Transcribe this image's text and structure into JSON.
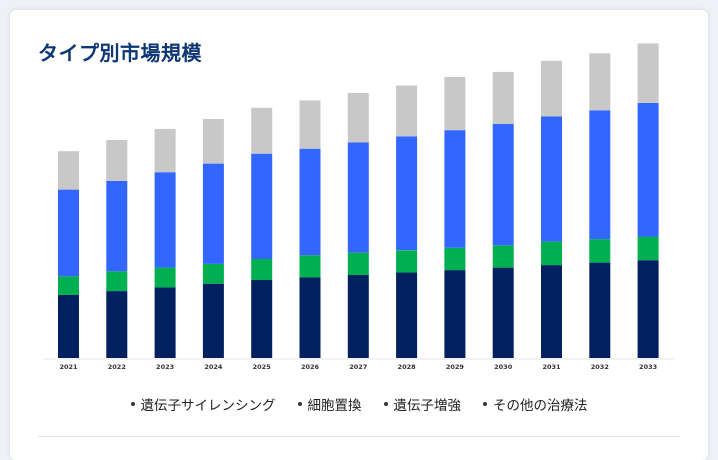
{
  "title": "タイプ別市場規模",
  "legend": [
    {
      "label": "遺伝子サイレンシング"
    },
    {
      "label": "細胞置換"
    },
    {
      "label": "遺伝子増強"
    },
    {
      "label": "その他の治療法"
    }
  ],
  "colors": {
    "series": [
      "#002060",
      "#00b050",
      "#3366ff",
      "#c8c8c8"
    ],
    "title": "#0d3675"
  },
  "chart_data": {
    "type": "bar",
    "stacked": true,
    "categories": [
      "2021",
      "2022",
      "2023",
      "2024",
      "2025",
      "2026",
      "2027",
      "2028",
      "2029",
      "2030",
      "2031",
      "2032",
      "2033"
    ],
    "series": [
      {
        "name": "遺伝子サイレンシング",
        "values": [
          51,
          54,
          57,
          60,
          63,
          65,
          67,
          69,
          71,
          73,
          75,
          77,
          79
        ]
      },
      {
        "name": "細胞置換",
        "values": [
          15,
          16,
          16,
          16,
          17,
          18,
          18,
          18,
          18,
          18,
          19,
          19,
          19
        ]
      },
      {
        "name": "遺伝子増強",
        "values": [
          70,
          73,
          77,
          81,
          85,
          86,
          89,
          92,
          95,
          98,
          101,
          104,
          108
        ]
      },
      {
        "name": "その他の治療法",
        "values": [
          31,
          33,
          35,
          36,
          37,
          39,
          40,
          41,
          43,
          42,
          45,
          46,
          48
        ]
      }
    ],
    "ylim": [
      0,
      260
    ],
    "grid": false,
    "legend_position": "bottom"
  }
}
